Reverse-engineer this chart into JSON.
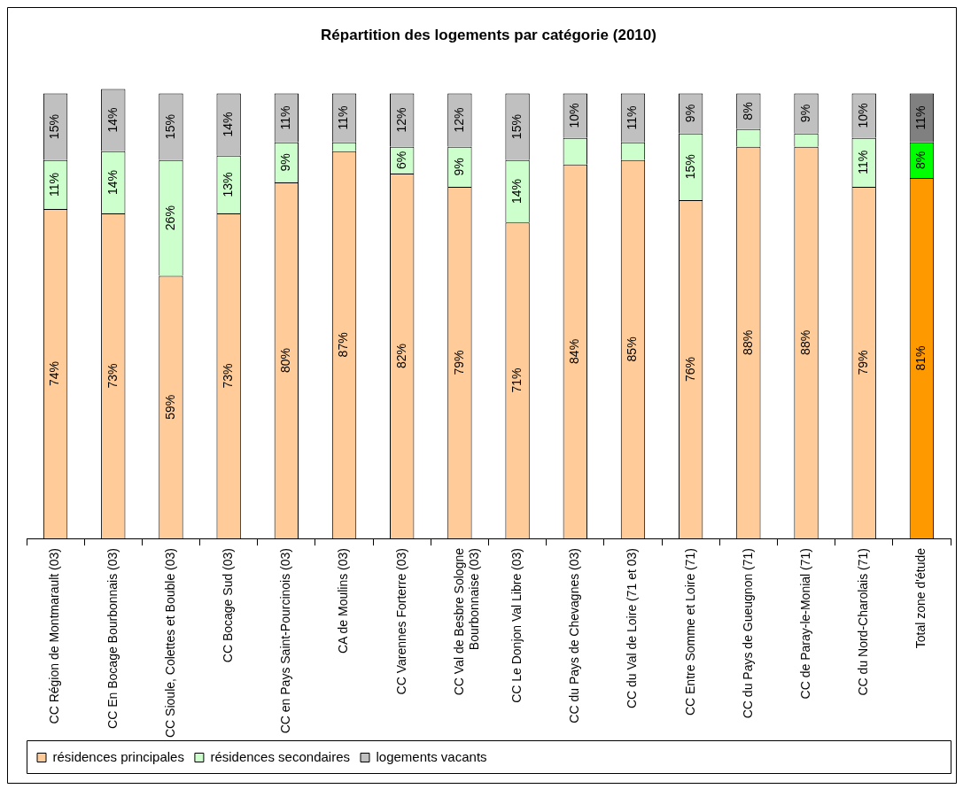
{
  "chart_data": {
    "type": "bar",
    "stacked": true,
    "title": "Répartition des logements par catégorie (2010)",
    "categories": [
      "CC Région de Montmarault (03)",
      "CC En Bocage Bourbonnais (03)",
      "CC Sioule, Colettes et Bouble (03)",
      "CC Bocage Sud (03)",
      "CC en Pays Saint-Pourcinois (03)",
      "CA de Moulins (03)",
      "CC Varennes Forterre (03)",
      "CC Val de Besbre Sologne Bourbonnaise (03)",
      "CC Le Donjon Val Libre (03)",
      "CC du Pays de Chevagnes (03)",
      "CC du Val de Loire (71 et 03)",
      "CC Entre Somme et Loire (71)",
      "CC du Pays de Gueugnon (71)",
      "CC de Paray-le-Monial (71)",
      "CC du Nord-Charolais (71)",
      "Total zone d'étude"
    ],
    "series": [
      {
        "name": "résidences principales",
        "color": "#ffcc99",
        "colors": [
          "#ffcc99",
          "#ffcc99",
          "#ffcc99",
          "#ffcc99",
          "#ffcc99",
          "#ffcc99",
          "#ffcc99",
          "#ffcc99",
          "#ffcc99",
          "#ffcc99",
          "#ffcc99",
          "#ffcc99",
          "#ffcc99",
          "#ffcc99",
          "#ffcc99",
          "#ff9900"
        ],
        "values": [
          74,
          73,
          59,
          73,
          80,
          87,
          82,
          79,
          71,
          84,
          85,
          76,
          88,
          88,
          79,
          81
        ],
        "value_labels": [
          "74%",
          "73%",
          "59%",
          "73%",
          "80%",
          "87%",
          "82%",
          "79%",
          "71%",
          "84%",
          "85%",
          "76%",
          "88%",
          "88%",
          "79%",
          "81%"
        ]
      },
      {
        "name": "résidences secondaires",
        "color": "#ccffcc",
        "colors": [
          "#ccffcc",
          "#ccffcc",
          "#ccffcc",
          "#ccffcc",
          "#ccffcc",
          "#ccffcc",
          "#ccffcc",
          "#ccffcc",
          "#ccffcc",
          "#ccffcc",
          "#ccffcc",
          "#ccffcc",
          "#ccffcc",
          "#ccffcc",
          "#ccffcc",
          "#00ff00"
        ],
        "values": [
          11,
          14,
          26,
          13,
          9,
          2,
          6,
          9,
          14,
          6,
          4,
          15,
          4,
          3,
          11,
          8
        ],
        "value_labels": [
          "11%",
          "14%",
          "26%",
          "13%",
          "9%",
          null,
          "6%",
          "9%",
          "14%",
          null,
          null,
          "15%",
          null,
          null,
          "11%",
          "8%"
        ]
      },
      {
        "name": "logements vacants",
        "color": "#c0c0c0",
        "colors": [
          "#c0c0c0",
          "#c0c0c0",
          "#c0c0c0",
          "#c0c0c0",
          "#c0c0c0",
          "#c0c0c0",
          "#c0c0c0",
          "#c0c0c0",
          "#c0c0c0",
          "#c0c0c0",
          "#c0c0c0",
          "#c0c0c0",
          "#c0c0c0",
          "#c0c0c0",
          "#c0c0c0",
          "#808080"
        ],
        "values": [
          15,
          14,
          15,
          14,
          11,
          11,
          12,
          12,
          15,
          10,
          11,
          9,
          8,
          9,
          10,
          11
        ],
        "value_labels": [
          "15%",
          "14%",
          "15%",
          "14%",
          "11%",
          "11%",
          "12%",
          "12%",
          "15%",
          "10%",
          "11%",
          "9%",
          "8%",
          "9%",
          "10%",
          "11%"
        ]
      }
    ],
    "ylim": [
      0,
      101
    ],
    "tick_labels": "x",
    "grid": false,
    "legend": "bottom left"
  }
}
